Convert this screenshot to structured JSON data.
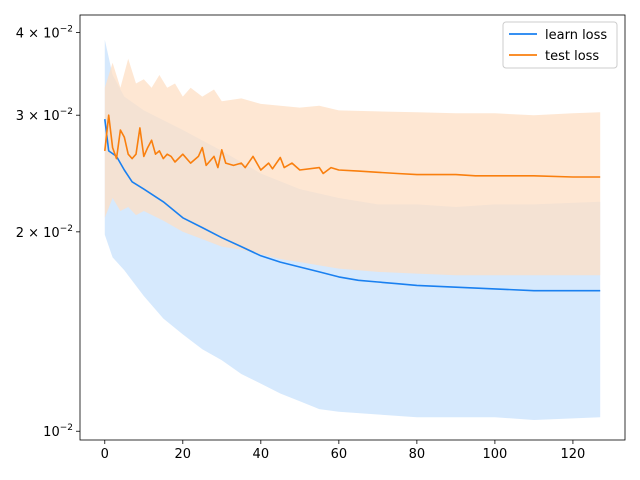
{
  "chart_data": {
    "type": "line",
    "title": "",
    "xlabel": "",
    "ylabel": "",
    "x_scale": "linear",
    "y_scale": "log",
    "xlim": [
      -6.35,
      133.35
    ],
    "ylim": [
      0.0097,
      0.0425
    ],
    "grid": false,
    "legend_placement": "top-right",
    "x_ticks": [
      {
        "value": 0,
        "label": "0"
      },
      {
        "value": 20,
        "label": "20"
      },
      {
        "value": 40,
        "label": "40"
      },
      {
        "value": 60,
        "label": "60"
      },
      {
        "value": 80,
        "label": "80"
      },
      {
        "value": 100,
        "label": "100"
      },
      {
        "value": 120,
        "label": "120"
      }
    ],
    "y_ticks": [
      {
        "value": 0.01,
        "base": "10",
        "exp": "−2"
      },
      {
        "value": 0.02,
        "base": "2 × 10",
        "exp": "−2"
      },
      {
        "value": 0.03,
        "base": "3 × 10",
        "exp": "−2"
      },
      {
        "value": 0.04,
        "base": "4 × 10",
        "exp": "−2"
      }
    ],
    "series": [
      {
        "name": "learn loss",
        "color": "#1a80f0",
        "band_color": "#c8e1fc",
        "points": [
          [
            0,
            0.0296
          ],
          [
            1,
            0.0265
          ],
          [
            3,
            0.026
          ],
          [
            5,
            0.0248
          ],
          [
            7,
            0.0238
          ],
          [
            10,
            0.0232
          ],
          [
            15,
            0.0222
          ],
          [
            20,
            0.021
          ],
          [
            25,
            0.0203
          ],
          [
            30,
            0.0196
          ],
          [
            35,
            0.019
          ],
          [
            40,
            0.0184
          ],
          [
            45,
            0.018
          ],
          [
            50,
            0.0177
          ],
          [
            55,
            0.0174
          ],
          [
            60,
            0.0171
          ],
          [
            65,
            0.0169
          ],
          [
            70,
            0.0168
          ],
          [
            75,
            0.0167
          ],
          [
            80,
            0.0166
          ],
          [
            90,
            0.0165
          ],
          [
            100,
            0.0164
          ],
          [
            110,
            0.0163
          ],
          [
            127,
            0.0163
          ]
        ],
        "band_upper": [
          [
            0,
            0.039
          ],
          [
            2,
            0.0345
          ],
          [
            5,
            0.032
          ],
          [
            10,
            0.0305
          ],
          [
            20,
            0.0285
          ],
          [
            30,
            0.0265
          ],
          [
            40,
            0.0245
          ],
          [
            50,
            0.0232
          ],
          [
            60,
            0.0225
          ],
          [
            70,
            0.022
          ],
          [
            80,
            0.022
          ],
          [
            90,
            0.0218
          ],
          [
            100,
            0.022
          ],
          [
            110,
            0.022
          ],
          [
            127,
            0.0222
          ]
        ],
        "band_lower": [
          [
            0,
            0.0198
          ],
          [
            2,
            0.0183
          ],
          [
            5,
            0.0175
          ],
          [
            10,
            0.016
          ],
          [
            15,
            0.0148
          ],
          [
            20,
            0.014
          ],
          [
            25,
            0.0133
          ],
          [
            30,
            0.0128
          ],
          [
            35,
            0.0122
          ],
          [
            40,
            0.0118
          ],
          [
            45,
            0.0114
          ],
          [
            50,
            0.0111
          ],
          [
            55,
            0.0108
          ],
          [
            60,
            0.0107
          ],
          [
            70,
            0.0106
          ],
          [
            80,
            0.0105
          ],
          [
            90,
            0.0105
          ],
          [
            100,
            0.0105
          ],
          [
            110,
            0.0104
          ],
          [
            127,
            0.0105
          ]
        ]
      },
      {
        "name": "test loss",
        "color": "#f97f0e",
        "band_color": "#fddfc4",
        "points": [
          [
            0,
            0.0265
          ],
          [
            1,
            0.03
          ],
          [
            2,
            0.0268
          ],
          [
            3,
            0.0258
          ],
          [
            4,
            0.0285
          ],
          [
            5,
            0.0278
          ],
          [
            6,
            0.0262
          ],
          [
            7,
            0.0258
          ],
          [
            8,
            0.0262
          ],
          [
            9,
            0.0287
          ],
          [
            10,
            0.026
          ],
          [
            11,
            0.0268
          ],
          [
            12,
            0.0275
          ],
          [
            13,
            0.0262
          ],
          [
            14,
            0.0265
          ],
          [
            15,
            0.0258
          ],
          [
            16,
            0.0262
          ],
          [
            17,
            0.026
          ],
          [
            18,
            0.0255
          ],
          [
            20,
            0.0262
          ],
          [
            22,
            0.0254
          ],
          [
            24,
            0.026
          ],
          [
            25,
            0.0268
          ],
          [
            26,
            0.0252
          ],
          [
            28,
            0.026
          ],
          [
            29,
            0.025
          ],
          [
            30,
            0.0266
          ],
          [
            31,
            0.0254
          ],
          [
            33,
            0.0252
          ],
          [
            35,
            0.0254
          ],
          [
            36,
            0.025
          ],
          [
            38,
            0.026
          ],
          [
            40,
            0.0248
          ],
          [
            42,
            0.0254
          ],
          [
            43,
            0.0249
          ],
          [
            45,
            0.0259
          ],
          [
            46,
            0.025
          ],
          [
            48,
            0.0254
          ],
          [
            50,
            0.0248
          ],
          [
            55,
            0.025
          ],
          [
            56,
            0.0245
          ],
          [
            58,
            0.025
          ],
          [
            60,
            0.0248
          ],
          [
            65,
            0.0247
          ],
          [
            70,
            0.0246
          ],
          [
            75,
            0.0245
          ],
          [
            80,
            0.0244
          ],
          [
            85,
            0.0244
          ],
          [
            90,
            0.0244
          ],
          [
            95,
            0.0243
          ],
          [
            100,
            0.0243
          ],
          [
            110,
            0.0243
          ],
          [
            120,
            0.0242
          ],
          [
            127,
            0.0242
          ]
        ],
        "band_upper": [
          [
            0,
            0.033
          ],
          [
            2,
            0.036
          ],
          [
            4,
            0.033
          ],
          [
            6,
            0.0365
          ],
          [
            8,
            0.0335
          ],
          [
            10,
            0.034
          ],
          [
            12,
            0.033
          ],
          [
            14,
            0.0345
          ],
          [
            16,
            0.033
          ],
          [
            18,
            0.0335
          ],
          [
            20,
            0.032
          ],
          [
            22,
            0.033
          ],
          [
            25,
            0.032
          ],
          [
            28,
            0.0328
          ],
          [
            30,
            0.0315
          ],
          [
            35,
            0.0318
          ],
          [
            40,
            0.0312
          ],
          [
            45,
            0.031
          ],
          [
            50,
            0.0308
          ],
          [
            55,
            0.031
          ],
          [
            60,
            0.0305
          ],
          [
            70,
            0.0304
          ],
          [
            80,
            0.0303
          ],
          [
            90,
            0.0302
          ],
          [
            100,
            0.0302
          ],
          [
            110,
            0.03
          ],
          [
            120,
            0.0302
          ],
          [
            127,
            0.0303
          ]
        ],
        "band_lower": [
          [
            0,
            0.021
          ],
          [
            2,
            0.0225
          ],
          [
            4,
            0.0215
          ],
          [
            6,
            0.0218
          ],
          [
            8,
            0.0212
          ],
          [
            10,
            0.0215
          ],
          [
            15,
            0.0208
          ],
          [
            20,
            0.02
          ],
          [
            25,
            0.0195
          ],
          [
            30,
            0.019
          ],
          [
            35,
            0.0188
          ],
          [
            40,
            0.0185
          ],
          [
            45,
            0.0182
          ],
          [
            50,
            0.018
          ],
          [
            60,
            0.0176
          ],
          [
            70,
            0.0174
          ],
          [
            80,
            0.0173
          ],
          [
            90,
            0.0172
          ],
          [
            100,
            0.0172
          ],
          [
            110,
            0.0172
          ],
          [
            127,
            0.0172
          ]
        ]
      }
    ]
  }
}
